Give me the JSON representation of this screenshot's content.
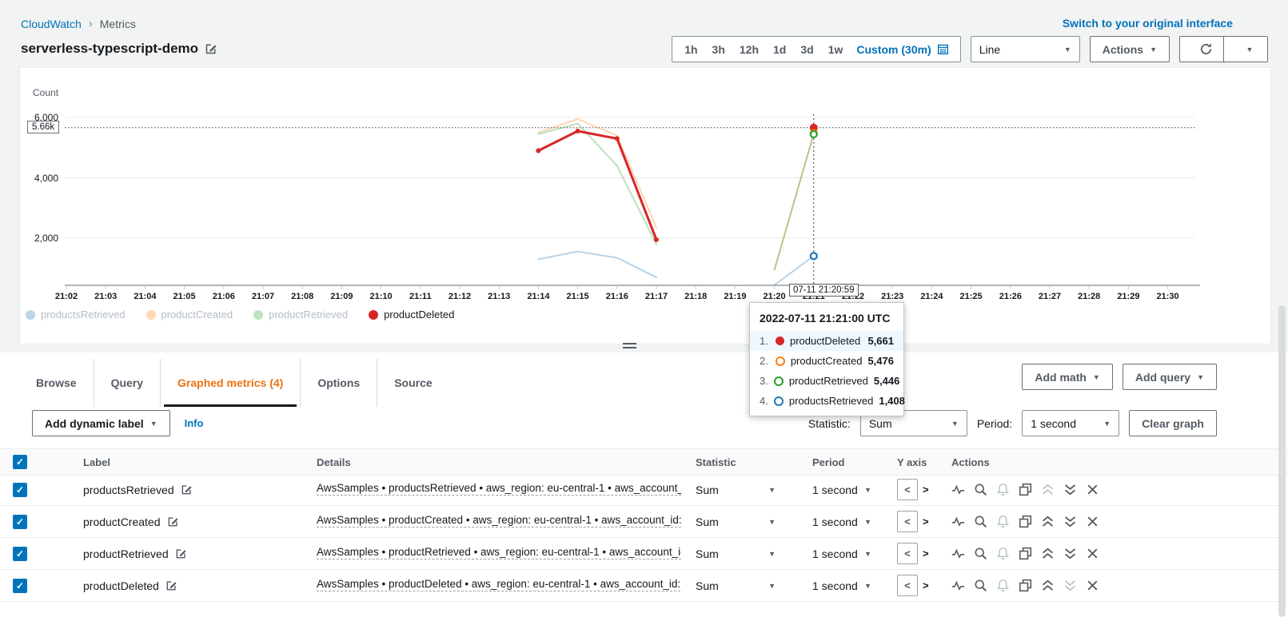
{
  "colors": {
    "link": "#0073bb",
    "accent": "#ec7211",
    "tab_underline": "#16191f",
    "series_blue": "#1f77b4",
    "series_orange": "#ff7f0e",
    "series_green": "#2ca02c",
    "series_red": "#d62728"
  },
  "icons": {
    "caret_down": "▼",
    "check": "✓",
    "breadcrumb_separator": "›",
    "y_axis_left": "<",
    "y_axis_right": ">",
    "action_icons": [
      "activity-icon",
      "zoom-icon",
      "alarm-icon",
      "duplicate-icon",
      "move-up-icon",
      "move-down-icon",
      "remove-icon"
    ]
  },
  "breadcrumb": {
    "root": "CloudWatch",
    "current": "Metrics"
  },
  "header": {
    "title": "serverless-typescript-demo",
    "switch_link": "Switch to your original interface"
  },
  "time_controls": {
    "ranges": [
      "1h",
      "3h",
      "12h",
      "1d",
      "3d",
      "1w"
    ],
    "custom_label": "Custom (30m)",
    "line_select": "Line",
    "actions_label": "Actions"
  },
  "chart_data": {
    "type": "line",
    "ylabel": "Count",
    "y_ticks": [
      {
        "label": "6,000",
        "value": 6000
      },
      {
        "label": "4,000",
        "value": 4000
      },
      {
        "label": "2,000",
        "value": 2000
      }
    ],
    "ylim": [
      400,
      6400
    ],
    "x_ticks": [
      "21:02",
      "21:03",
      "21:04",
      "21:05",
      "21:06",
      "21:07",
      "21:08",
      "21:09",
      "21:10",
      "21:11",
      "21:12",
      "21:13",
      "21:14",
      "21:15",
      "21:16",
      "21:17",
      "21:18",
      "21:19",
      "21:20",
      "21:21",
      "21:22",
      "21:23",
      "21:24",
      "21:25",
      "21:26",
      "21:27",
      "21:28",
      "21:29",
      "21:30"
    ],
    "grid": "horizontal-only",
    "legend_position": "bottom",
    "series": [
      {
        "name": "productsRetrieved",
        "color": "#1f77b4",
        "dimmed": true,
        "segments": [
          [
            [
              "21:14",
              1300
            ],
            [
              "21:15",
              1560
            ],
            [
              "21:16",
              1350
            ],
            [
              "21:17",
              700
            ]
          ],
          [
            [
              "21:20",
              450
            ],
            [
              "21:21",
              1408
            ]
          ]
        ]
      },
      {
        "name": "productCreated",
        "color": "#ff7f0e",
        "dimmed": true,
        "segments": [
          [
            [
              "21:14",
              5500
            ],
            [
              "21:15",
              5950
            ],
            [
              "21:16",
              5400
            ],
            [
              "21:17",
              2350
            ]
          ],
          [
            [
              "21:20",
              950
            ],
            [
              "21:21",
              5476
            ]
          ]
        ]
      },
      {
        "name": "productRetrieved",
        "color": "#2ca02c",
        "dimmed": true,
        "segments": [
          [
            [
              "21:14",
              5450
            ],
            [
              "21:15",
              5800
            ],
            [
              "21:16",
              4400
            ],
            [
              "21:17",
              1800
            ]
          ],
          [
            [
              "21:20",
              950
            ],
            [
              "21:21",
              5446
            ]
          ]
        ]
      },
      {
        "name": "productDeleted",
        "color": "#d62728",
        "dimmed": false,
        "point_markers": true,
        "segments": [
          [
            [
              "21:14",
              4900
            ],
            [
              "21:15",
              5550
            ],
            [
              "21:16",
              5300
            ],
            [
              "21:17",
              1950
            ]
          ]
        ],
        "isolated_points": [
          [
            "21:21",
            5661
          ]
        ]
      }
    ],
    "hover": {
      "time": "21:21",
      "label": "07-11 21:20:59",
      "badge": "5.66k",
      "level": 5661,
      "points": [
        {
          "series": "productDeleted",
          "value": 5661,
          "color": "#d62728",
          "filled": true
        },
        {
          "series": "productCreated",
          "value": 5476,
          "color": "#ff7f0e",
          "filled": false
        },
        {
          "series": "productRetrieved",
          "value": 5446,
          "color": "#2ca02c",
          "filled": false
        },
        {
          "series": "productsRetrieved",
          "value": 1408,
          "color": "#1f77b4",
          "filled": false
        }
      ]
    }
  },
  "tooltip": {
    "title": "2022-07-11 21:21:00 UTC",
    "rows": [
      {
        "rank": "1.",
        "name": "productDeleted",
        "value": "5,661",
        "color": "#d62728",
        "filled": true,
        "highlight": true
      },
      {
        "rank": "2.",
        "name": "productCreated",
        "value": "5,476",
        "color": "#ff7f0e",
        "filled": false,
        "highlight": false
      },
      {
        "rank": "3.",
        "name": "productRetrieved",
        "value": "5,446",
        "color": "#2ca02c",
        "filled": false,
        "highlight": false
      },
      {
        "rank": "4.",
        "name": "productsRetrieved",
        "value": "1,408",
        "color": "#1f77b4",
        "filled": false,
        "highlight": false
      }
    ]
  },
  "tabs": [
    {
      "label": "Browse",
      "active": false
    },
    {
      "label": "Query",
      "active": false
    },
    {
      "label": "Graphed metrics (4)",
      "active": true
    },
    {
      "label": "Options",
      "active": false
    },
    {
      "label": "Source",
      "active": false
    }
  ],
  "buttons": {
    "add_math": "Add math",
    "add_query": "Add query",
    "add_dynamic_label": "Add dynamic label",
    "info": "Info",
    "clear_graph": "Clear graph"
  },
  "stat_controls": {
    "statistic_label": "Statistic:",
    "statistic_value": "Sum",
    "period_label": "Period:",
    "period_value": "1 second"
  },
  "table": {
    "columns": [
      "Label",
      "Details",
      "Statistic",
      "Period",
      "Y axis",
      "Actions"
    ],
    "rows": [
      {
        "checked": true,
        "color": "#1f77b4",
        "label": "productsRetrieved",
        "details": "AwsSamples • productsRetrieved • aws_region: eu-central-1 • aws_account_i",
        "statistic": "Sum",
        "period": "1 second",
        "can_move_up": false,
        "can_move_down": true
      },
      {
        "checked": true,
        "color": "#ff7f0e",
        "label": "productCreated",
        "details": "AwsSamples • productCreated • aws_region: eu-central-1 • aws_account_id:",
        "statistic": "Sum",
        "period": "1 second",
        "can_move_up": true,
        "can_move_down": true
      },
      {
        "checked": true,
        "color": "#2ca02c",
        "label": "productRetrieved",
        "details": "AwsSamples • productRetrieved • aws_region: eu-central-1 • aws_account_ic",
        "statistic": "Sum",
        "period": "1 second",
        "can_move_up": true,
        "can_move_down": true
      },
      {
        "checked": true,
        "color": "#d62728",
        "label": "productDeleted",
        "details": "AwsSamples • productDeleted • aws_region: eu-central-1 • aws_account_id:",
        "statistic": "Sum",
        "period": "1 second",
        "can_move_up": true,
        "can_move_down": false
      }
    ]
  }
}
